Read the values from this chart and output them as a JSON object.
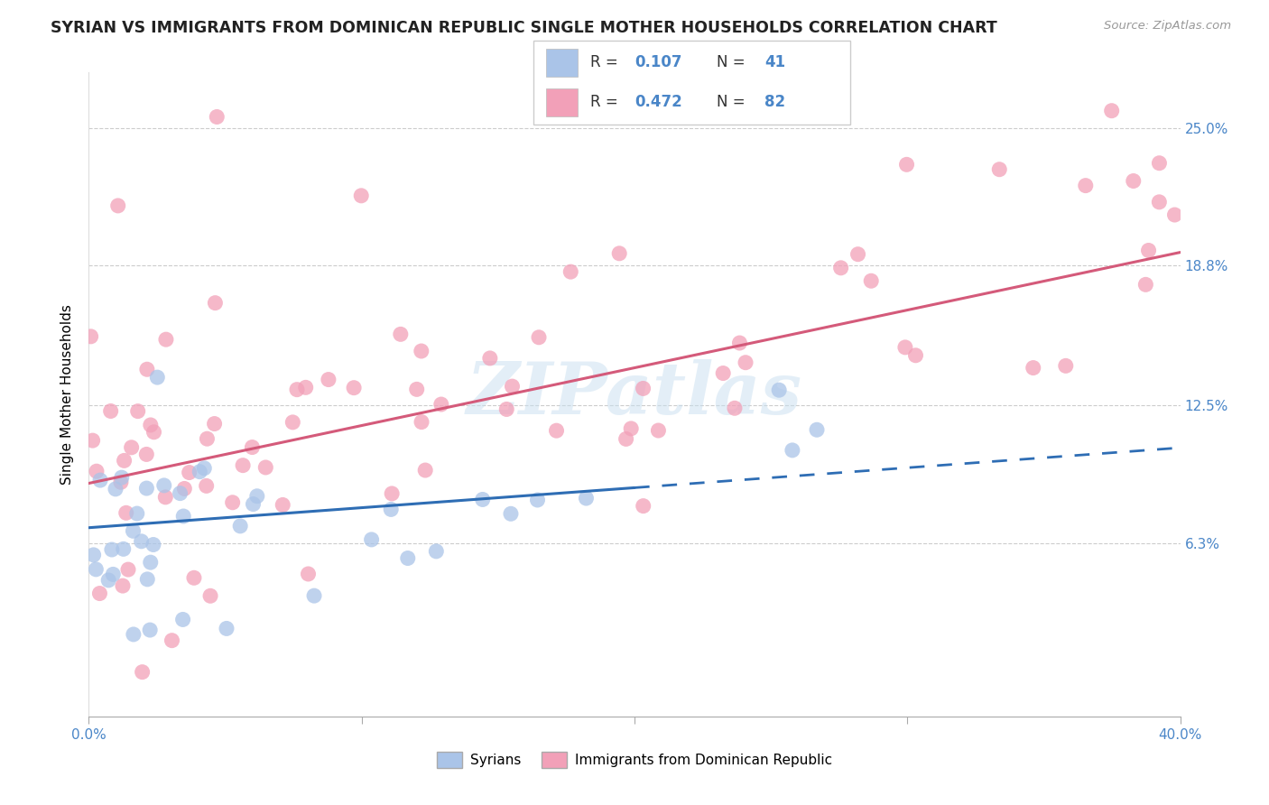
{
  "title": "SYRIAN VS IMMIGRANTS FROM DOMINICAN REPUBLIC SINGLE MOTHER HOUSEHOLDS CORRELATION CHART",
  "source": "Source: ZipAtlas.com",
  "ylabel": "Single Mother Households",
  "ytick_vals": [
    6.3,
    12.5,
    18.8,
    25.0
  ],
  "xlim": [
    0.0,
    40.0
  ],
  "ylim_top": 27.5,
  "ylim_bottom": -1.5,
  "syrian_color": "#aac4e8",
  "dominican_color": "#f2a0b8",
  "line_syrian_color": "#2e6db4",
  "line_dominican_color": "#d45a7a",
  "syrian_R": 0.107,
  "syrian_N": 41,
  "dominican_R": 0.472,
  "dominican_N": 82,
  "legend_label_syrian": "Syrians",
  "legend_label_dominican": "Immigrants from Dominican Republic",
  "watermark": "ZIPatlas",
  "syr_intercept": 7.0,
  "syr_slope": 0.09,
  "syr_solid_end": 20.0,
  "syr_dash_end": 40.0,
  "dom_intercept": 9.0,
  "dom_slope": 0.26,
  "dom_end": 40.0,
  "title_color": "#222222",
  "source_color": "#999999",
  "axis_label_color": "#4a86c8",
  "grid_color": "#cccccc",
  "background_color": "#ffffff"
}
